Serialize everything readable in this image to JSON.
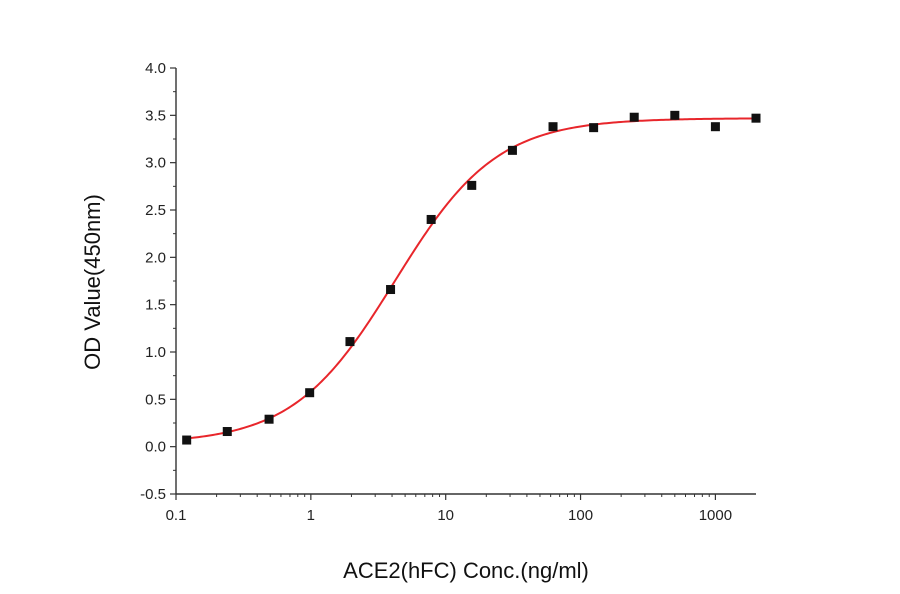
{
  "chart_data": {
    "type": "scatter",
    "title": "",
    "xlabel": "ACE2(hFC) Conc.(ng/ml)",
    "ylabel": "OD Value(450nm)",
    "x_scale": "log",
    "xlim": [
      0.1,
      2000
    ],
    "ylim": [
      -0.5,
      4.0
    ],
    "x_ticks": [
      0.1,
      1,
      10,
      100,
      1000
    ],
    "x_tick_labels": [
      "0.1",
      "1",
      "10",
      "100",
      "1000"
    ],
    "y_ticks": [
      -0.5,
      0.0,
      0.5,
      1.0,
      1.5,
      2.0,
      2.5,
      3.0,
      3.5,
      4.0
    ],
    "y_tick_labels": [
      "-0.5",
      "0.0",
      "0.5",
      "1.0",
      "1.5",
      "2.0",
      "2.5",
      "3.0",
      "3.5",
      "4.0"
    ],
    "grid": false,
    "legend": "none",
    "marker_color": "#111111",
    "fit_color": "#e8262b",
    "series": [
      {
        "x": [
          0.12,
          0.24,
          0.49,
          0.98,
          1.95,
          3.9,
          7.8,
          15.6,
          31.25,
          62.5,
          125,
          250,
          500,
          1000,
          2000
        ],
        "y": [
          0.07,
          0.16,
          0.29,
          0.57,
          1.11,
          1.66,
          2.4,
          2.76,
          3.13,
          3.38,
          3.37,
          3.48,
          3.5,
          3.38,
          3.47
        ]
      }
    ],
    "fit_curve": {
      "model": "4PL",
      "bottom": 0.03,
      "top": 3.47,
      "ec50": 4.2,
      "hill": 1.15
    }
  }
}
